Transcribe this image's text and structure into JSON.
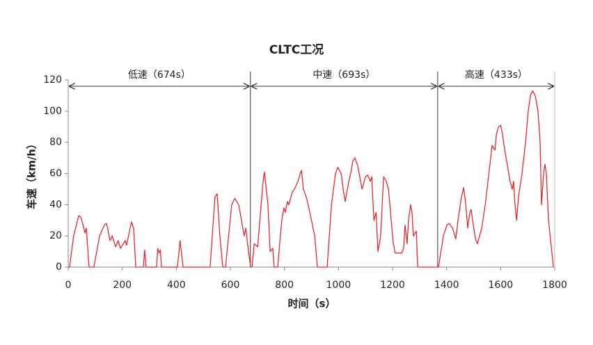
{
  "chart_data": {
    "type": "line",
    "title": "CLTC工况",
    "x_label": "时间（s）",
    "y_label": "车速（km/h）",
    "xlim": [
      0,
      1800
    ],
    "ylim": [
      0,
      120
    ],
    "xticks": [
      0,
      200,
      400,
      600,
      800,
      1000,
      1200,
      1400,
      1600,
      1800
    ],
    "yticks": [
      0,
      20,
      40,
      60,
      80,
      100,
      120
    ],
    "grid": false,
    "phases": [
      {
        "label": "低速（674s）",
        "start": 0,
        "end": 674
      },
      {
        "label": "中速（693s）",
        "start": 674,
        "end": 1367
      },
      {
        "label": "高速（433s）",
        "start": 1367,
        "end": 1800
      }
    ],
    "series": [
      {
        "name": "车速",
        "color": "#e8262a",
        "x": [
          0,
          5,
          20,
          39,
          47,
          62,
          67,
          77,
          95,
          116,
          134,
          142,
          155,
          163,
          175,
          185,
          193,
          211,
          216,
          229,
          234,
          242,
          250,
          278,
          283,
          288,
          327,
          331,
          336,
          341,
          345,
          404,
          414,
          425,
          525,
          543,
          551,
          561,
          572,
          582,
          605,
          616,
          631,
          636,
          651,
          657,
          667,
          675,
          680,
          688,
          701,
          721,
          726,
          739,
          747,
          757,
          762,
          775,
          790,
          798,
          803,
          811,
          816,
          829,
          837,
          850,
          860,
          863,
          870,
          881,
          894,
          912,
          922,
          958,
          974,
          989,
          997,
          1010,
          1017,
          1025,
          1038,
          1045,
          1053,
          1061,
          1071,
          1082,
          1087,
          1100,
          1108,
          1118,
          1123,
          1131,
          1139,
          1146,
          1156,
          1167,
          1177,
          1185,
          1195,
          1203,
          1210,
          1234,
          1241,
          1246,
          1254,
          1259,
          1267,
          1272,
          1277,
          1288,
          1293,
          1370,
          1388,
          1401,
          1409,
          1422,
          1434,
          1442,
          1455,
          1463,
          1471,
          1478,
          1486,
          1491,
          1496,
          1507,
          1514,
          1530,
          1543,
          1553,
          1563,
          1568,
          1579,
          1584,
          1592,
          1600,
          1607,
          1615,
          1625,
          1635,
          1643,
          1648,
          1653,
          1659,
          1666,
          1679,
          1692,
          1702,
          1710,
          1718,
          1728,
          1738,
          1746,
          1751,
          1759,
          1764,
          1769,
          1777,
          1788,
          1795
        ],
        "values": [
          0,
          0,
          20,
          33,
          32,
          22,
          25,
          0,
          0,
          20,
          27,
          28,
          17,
          20,
          13,
          17,
          12,
          17,
          14,
          25,
          29,
          25,
          0,
          0,
          11,
          0,
          0,
          12,
          9,
          11,
          0,
          0,
          17,
          0,
          0,
          45,
          47,
          20,
          0,
          0,
          40,
          44,
          40,
          35,
          20,
          25,
          10,
          0,
          0,
          15,
          13,
          55,
          61,
          40,
          10,
          12,
          0,
          0,
          30,
          38,
          35,
          42,
          40,
          48,
          50,
          55,
          61,
          62,
          50,
          45,
          35,
          20,
          0,
          0,
          40,
          60,
          64,
          60,
          50,
          42,
          55,
          60,
          68,
          70,
          65,
          55,
          50,
          58,
          59,
          55,
          58,
          30,
          35,
          10,
          20,
          58,
          55,
          50,
          30,
          15,
          9,
          9,
          12,
          27,
          15,
          30,
          40,
          35,
          20,
          23,
          0,
          0,
          20,
          27,
          28,
          25,
          18,
          30,
          45,
          51,
          40,
          25,
          35,
          37,
          30,
          18,
          15,
          25,
          40,
          55,
          70,
          78,
          75,
          85,
          90,
          91,
          85,
          75,
          65,
          55,
          50,
          55,
          40,
          30,
          45,
          60,
          80,
          100,
          110,
          113,
          110,
          100,
          80,
          40,
          60,
          66,
          60,
          30,
          12,
          0
        ]
      }
    ]
  }
}
